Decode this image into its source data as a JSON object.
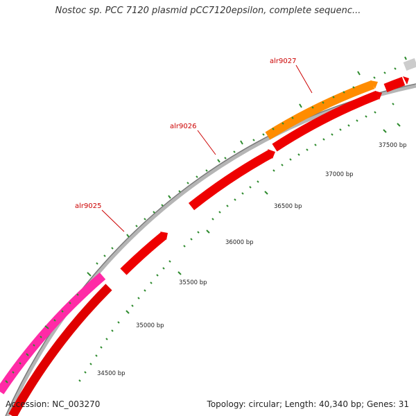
{
  "title": "Nostoc sp. PCC 7120 plasmid pCC7120epsilon, complete sequenc...",
  "footer": {
    "accession": "Accession: NC_003270",
    "summary": "Topology: circular; Length: 40,340 bp; Genes: 31"
  },
  "colors": {
    "backbone": "#8c8c8c",
    "gene_forward": "#ff0000",
    "gene_reverse_magenta": "#ff2aa6",
    "gene_highlight_orange": "#ff8c00",
    "gene_other_gray": "#cccccc",
    "tick_marks": "#2e8b2e",
    "gene_label_text": "#cc0000"
  },
  "ruler_labels": [
    "34500 bp",
    "35000 bp",
    "35500 bp",
    "36000 bp",
    "36500 bp",
    "37000 bp",
    "37500 bp"
  ],
  "gene_labels": [
    "alr9025",
    "alr9026",
    "alr9027"
  ]
}
